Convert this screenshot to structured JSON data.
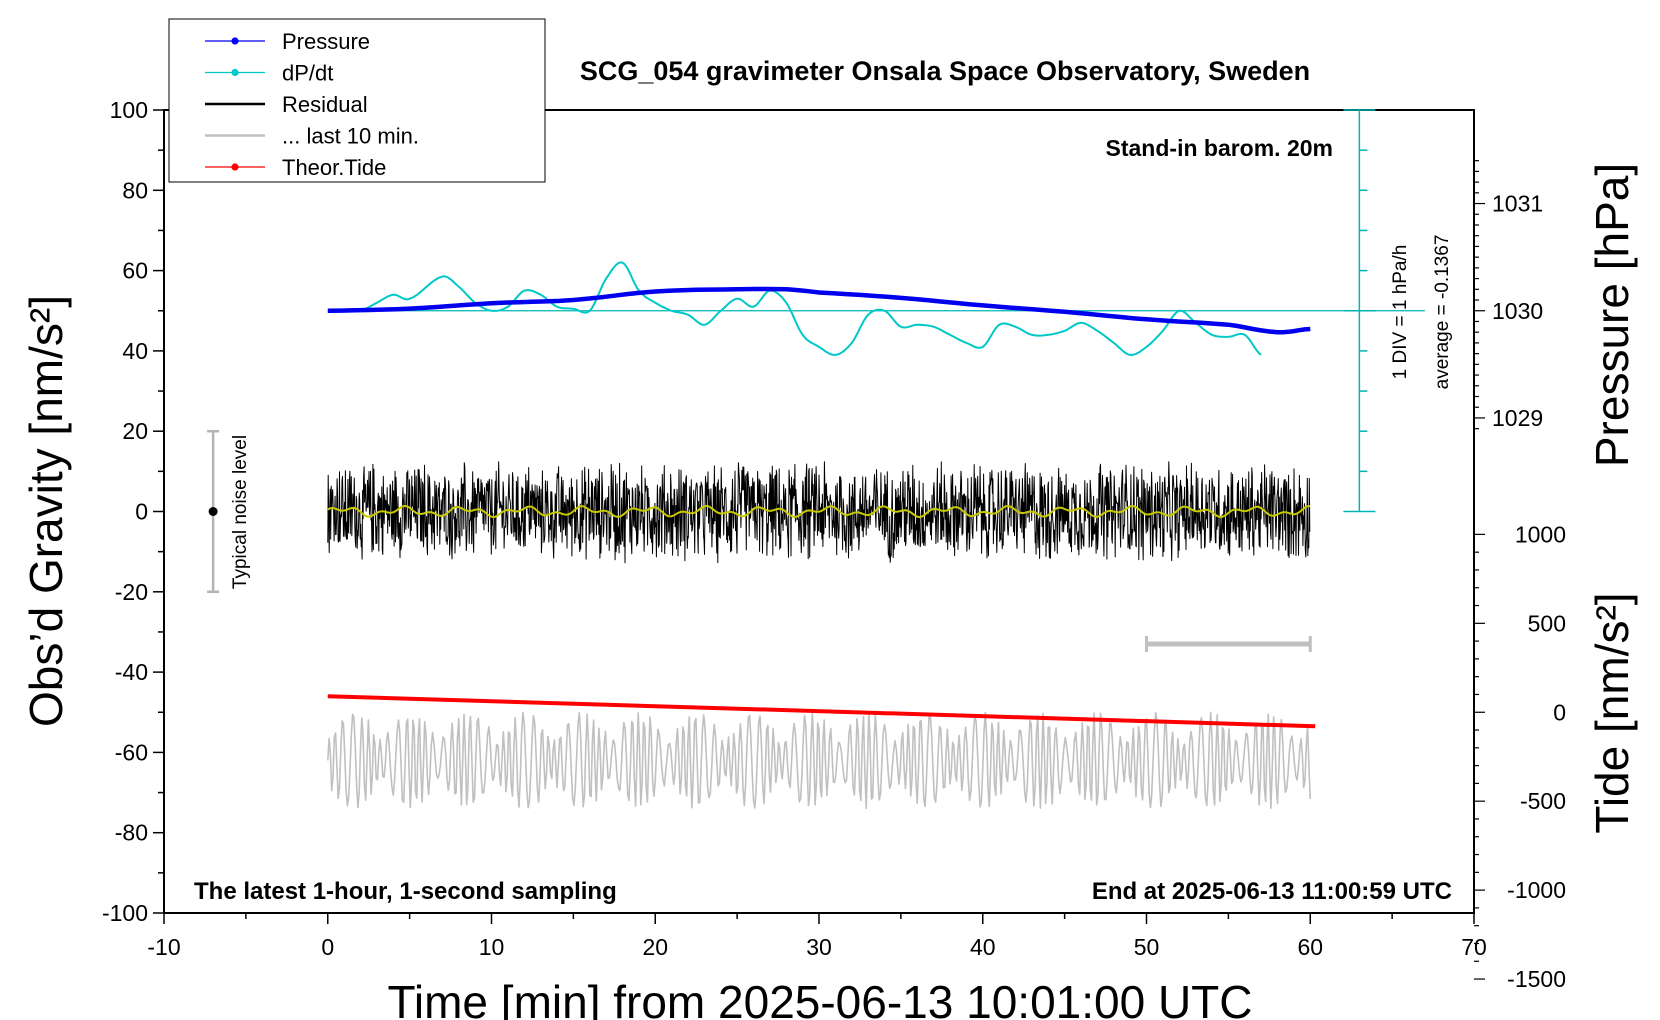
{
  "chart_data": {
    "type": "line",
    "title": "SCG_054 gravimeter Onsala Space Observatory, Sweden",
    "xlabel": "Time [min] from 2025-06-13 10:01:00 UTC",
    "ylabel_left": "Obs’d Gravity [nm/s²]",
    "ylabel_right_pressure": "Pressure [hPa]",
    "ylabel_right_tide": "Tide [nm/s²]",
    "xlim": [
      -10,
      70
    ],
    "ylim": [
      -100,
      100
    ],
    "x_ticks": [
      -10,
      0,
      10,
      20,
      30,
      40,
      50,
      60,
      70
    ],
    "y_ticks": [
      -100,
      -80,
      -60,
      -40,
      -20,
      0,
      20,
      40,
      60,
      80,
      100
    ],
    "pressure_ticks": [
      1029,
      1030,
      1031
    ],
    "tide_ticks": [
      1000,
      500,
      0,
      -500,
      -1000,
      -1500
    ],
    "grid": false,
    "legend_position": "top-left",
    "legend": [
      {
        "name": "Pressure",
        "color": "#0000ff",
        "marker": true
      },
      {
        "name": "dP/dt",
        "color": "#00c8c8",
        "marker": true
      },
      {
        "name": "Residual",
        "color": "#000000",
        "marker": false
      },
      {
        "name": "... last 10 min.",
        "color": "#c0c0c0",
        "marker": false
      },
      {
        "name": "Theor.Tide",
        "color": "#ff0000",
        "marker": true
      }
    ],
    "annotations": {
      "stand_in": "Stand-in barom. 20m",
      "div_label": "1 DIV = 1 hPa/h",
      "average_label": "average = -0.1367",
      "noise_label": "Typical noise level",
      "bottom_left": "The latest 1-hour, 1-second sampling",
      "bottom_right": "End at 2025-06-13 11:00:59 UTC"
    },
    "noise_bar": {
      "x": -7,
      "center": 0,
      "range": [
        -20,
        20
      ]
    },
    "ten_min_bar": {
      "x_range": [
        50,
        60
      ],
      "y": -33
    },
    "pressure_series": {
      "name": "Pressure",
      "x": [
        0,
        5,
        10,
        15,
        20,
        25,
        28,
        30,
        35,
        40,
        45,
        50,
        55,
        58,
        60
      ],
      "y": [
        1030.0,
        1030.02,
        1030.07,
        1030.1,
        1030.18,
        1030.2,
        1030.2,
        1030.17,
        1030.12,
        1030.05,
        1029.99,
        1029.92,
        1029.87,
        1029.8,
        1029.83
      ]
    },
    "dpdt_series": {
      "name": "dP/dt",
      "x": [
        0,
        2,
        3,
        4,
        5,
        7,
        8,
        9,
        10,
        11,
        12,
        13,
        14,
        15,
        16,
        17,
        18,
        19,
        20,
        21,
        22,
        23,
        24,
        25,
        26,
        27,
        28,
        29,
        30,
        31,
        32,
        33,
        34,
        35,
        36,
        37,
        38,
        39,
        40,
        41,
        42,
        43,
        44,
        45,
        46,
        47,
        48,
        49,
        50,
        51,
        52,
        53,
        54,
        55,
        56,
        57
      ],
      "y": [
        50,
        50,
        52,
        54,
        53,
        58.5,
        56,
        52,
        50,
        51,
        55,
        54,
        51,
        50.5,
        50,
        58,
        62,
        55,
        52,
        50,
        49,
        46.5,
        50,
        53,
        51,
        55,
        52,
        44,
        41,
        39,
        42,
        49,
        50,
        46,
        46.5,
        46,
        44,
        42,
        41,
        46.5,
        46,
        44,
        44,
        45,
        47,
        45,
        42,
        39,
        41,
        45,
        50,
        47,
        44,
        43.5,
        44,
        39
      ]
    },
    "residual_series": {
      "name": "Residual",
      "x_range": [
        0,
        60
      ],
      "center": 0,
      "amplitude": 13
    },
    "smoothed_residual": {
      "color": "#c8c800",
      "x_range": [
        0,
        60
      ],
      "center": 0
    },
    "tide_series": {
      "name": "Theor.Tide",
      "x": [
        0,
        60.3
      ],
      "y": [
        -46,
        -53.5
      ]
    },
    "last10_series": {
      "name": "... last 10 min.",
      "x_range": [
        0,
        60
      ],
      "center": -62,
      "amplitude": 12
    }
  }
}
